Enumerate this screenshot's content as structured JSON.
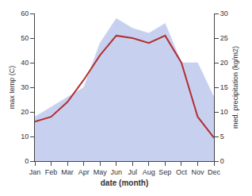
{
  "chart_data": {
    "type": "line",
    "categories": [
      "Jan",
      "Feb",
      "Mar",
      "Apr",
      "May",
      "Jun",
      "Jul",
      "Aug",
      "Sep",
      "Oct",
      "Nov",
      "Dec"
    ],
    "xlabel": "date (month)",
    "ylabel": "max temp (C)",
    "y2label": "med. precipitation (kg/m2)",
    "series": [
      {
        "type": "area",
        "axis": "y2",
        "color": "#c8d0f0",
        "values": [
          9,
          11,
          13,
          15,
          24,
          29,
          27,
          26,
          28,
          20,
          20,
          13
        ]
      },
      {
        "type": "line",
        "color": "#b03030",
        "values": [
          16,
          18,
          24,
          33,
          43,
          51,
          50,
          48,
          51,
          40,
          18,
          9.5
        ]
      }
    ],
    "ylim": [
      0,
      60
    ],
    "yticks": [
      0,
      10,
      20,
      30,
      40,
      50,
      60
    ],
    "y2lim": [
      0,
      30
    ],
    "y2ticks": [
      0,
      5,
      10,
      15,
      20,
      25,
      30
    ],
    "grid": false
  }
}
